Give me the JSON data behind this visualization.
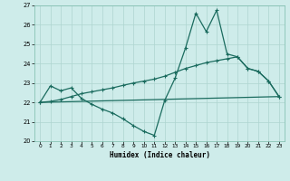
{
  "xlabel": "Humidex (Indice chaleur)",
  "xlim": [
    -0.5,
    23.5
  ],
  "ylim": [
    20,
    27
  ],
  "xticks": [
    0,
    1,
    2,
    3,
    4,
    5,
    6,
    7,
    8,
    9,
    10,
    11,
    12,
    13,
    14,
    15,
    16,
    17,
    18,
    19,
    20,
    21,
    22,
    23
  ],
  "yticks": [
    20,
    21,
    22,
    23,
    24,
    25,
    26,
    27
  ],
  "bg_color": "#ceecea",
  "line_color": "#1a6b5e",
  "line1_x": [
    0,
    1,
    2,
    3,
    4,
    5,
    6,
    7,
    8,
    9,
    10,
    11,
    12,
    13,
    14,
    15,
    16,
    17,
    18,
    19,
    20,
    21,
    22,
    23
  ],
  "line1_y": [
    22.0,
    22.85,
    22.6,
    22.75,
    22.2,
    21.9,
    21.65,
    21.45,
    21.15,
    20.8,
    20.5,
    20.3,
    22.1,
    23.25,
    24.8,
    26.6,
    25.65,
    26.75,
    24.5,
    24.35,
    23.75,
    23.6,
    23.1,
    22.3
  ],
  "line2_x": [
    0,
    23
  ],
  "line2_y": [
    22.0,
    22.3
  ],
  "line3_x": [
    0,
    1,
    2,
    3,
    4,
    5,
    6,
    7,
    8,
    9,
    10,
    11,
    12,
    13,
    14,
    15,
    16,
    17,
    18,
    19,
    20,
    21,
    22,
    23
  ],
  "line3_y": [
    22.0,
    22.05,
    22.15,
    22.3,
    22.45,
    22.55,
    22.65,
    22.75,
    22.88,
    23.0,
    23.1,
    23.2,
    23.35,
    23.55,
    23.75,
    23.9,
    24.05,
    24.15,
    24.25,
    24.35,
    23.75,
    23.6,
    23.1,
    22.3
  ]
}
